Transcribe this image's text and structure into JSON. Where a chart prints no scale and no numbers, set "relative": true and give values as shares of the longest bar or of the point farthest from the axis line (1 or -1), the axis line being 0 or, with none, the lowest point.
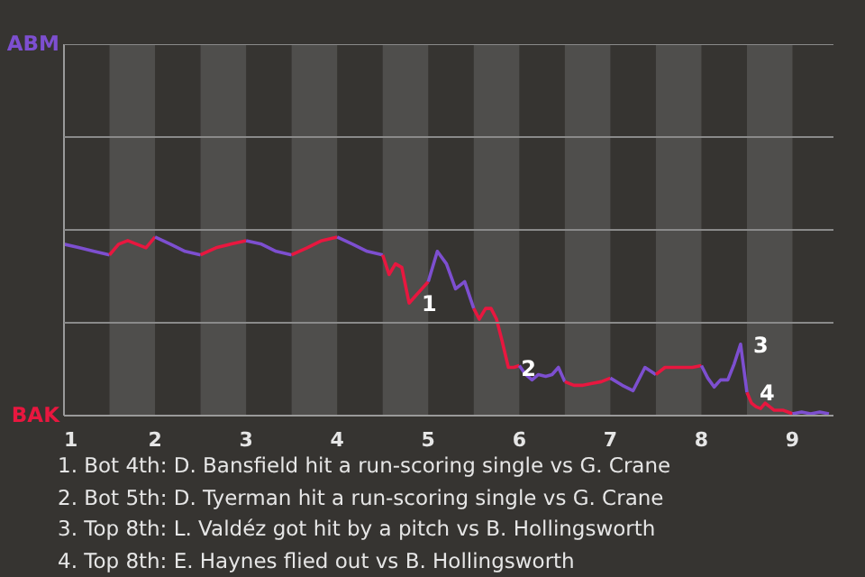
{
  "chart_data": {
    "type": "line",
    "relative": true,
    "ref_lines": [
      {
        "axis": "y",
        "value": 0.52,
        "color": "#8a8a8a"
      },
      {
        "axis": "y",
        "value": 1.04,
        "color": "#8a8a8a"
      },
      {
        "axis": "y",
        "value": 1.56,
        "color": "#8a8a8a"
      },
      {
        "axis": "y",
        "value": 2.08,
        "color": "#8a8a8a"
      }
    ],
    "xlim": [
      1,
      9.45
    ],
    "xticks": [
      1,
      2,
      3,
      4,
      5,
      6,
      7,
      8,
      9
    ],
    "series": [
      {
        "name": "ABM",
        "color": "#7d4fd0",
        "x": [
          1,
          1.17,
          1.33,
          1.5
        ],
        "values": [
          0.96,
          0.94,
          0.92,
          0.9
        ]
      },
      {
        "name": "BAK",
        "color": "#e8173f",
        "x": [
          1.5,
          1.6,
          1.7,
          1.8,
          1.9,
          2
        ],
        "values": [
          0.9,
          0.96,
          0.98,
          0.96,
          0.94,
          1
        ]
      },
      {
        "color": "#7d4fd0",
        "x": [
          2,
          2.17,
          2.33,
          2.5
        ],
        "values": [
          1,
          0.96,
          0.92,
          0.9
        ]
      },
      {
        "color": "#e8173f",
        "x": [
          2.5,
          2.67,
          2.83,
          3
        ],
        "values": [
          0.9,
          0.94,
          0.96,
          0.98
        ]
      },
      {
        "color": "#7d4fd0",
        "x": [
          3,
          3.17,
          3.33,
          3.5
        ],
        "values": [
          0.98,
          0.96,
          0.92,
          0.9
        ]
      },
      {
        "color": "#e8173f",
        "x": [
          3.5,
          3.67,
          3.83,
          4
        ],
        "values": [
          0.9,
          0.94,
          0.98,
          1
        ]
      },
      {
        "color": "#7d4fd0",
        "x": [
          4,
          4.17,
          4.33,
          4.5
        ],
        "values": [
          1,
          0.96,
          0.92,
          0.9
        ]
      },
      {
        "color": "#e8173f",
        "x": [
          4.5,
          4.57,
          4.64,
          4.71,
          4.79,
          4.86,
          4.93,
          5
        ],
        "values": [
          0.9,
          0.79,
          0.85,
          0.83,
          0.63,
          0.67,
          0.71,
          0.75
        ]
      },
      {
        "color": "#7d4fd0",
        "x": [
          5,
          5.1,
          5.2,
          5.3,
          5.4,
          5.5
        ],
        "values": [
          0.75,
          0.92,
          0.85,
          0.71,
          0.75,
          0.6
        ]
      },
      {
        "color": "#e8173f",
        "x": [
          5.5,
          5.56,
          5.63,
          5.69,
          5.75,
          5.81,
          5.88,
          5.94,
          6
        ],
        "values": [
          0.6,
          0.54,
          0.6,
          0.6,
          0.54,
          0.42,
          0.27,
          0.27,
          0.28
        ]
      },
      {
        "color": "#7d4fd0",
        "x": [
          6,
          6.07,
          6.14,
          6.21,
          6.29,
          6.36,
          6.43,
          6.5
        ],
        "values": [
          0.28,
          0.23,
          0.2,
          0.23,
          0.22,
          0.23,
          0.27,
          0.19
        ]
      },
      {
        "color": "#e8173f",
        "x": [
          6.5,
          6.6,
          6.7,
          6.8,
          6.9,
          7
        ],
        "values": [
          0.19,
          0.17,
          0.17,
          0.18,
          0.19,
          0.21
        ]
      },
      {
        "color": "#7d4fd0",
        "x": [
          7,
          7.13,
          7.25,
          7.38,
          7.5
        ],
        "values": [
          0.21,
          0.17,
          0.14,
          0.27,
          0.23
        ]
      },
      {
        "color": "#e8173f",
        "x": [
          7.5,
          7.6,
          7.7,
          7.8,
          7.9,
          8
        ],
        "values": [
          0.23,
          0.27,
          0.27,
          0.27,
          0.27,
          0.28
        ]
      },
      {
        "color": "#7d4fd0",
        "x": [
          8,
          8.07,
          8.14,
          8.21,
          8.29,
          8.36,
          8.43,
          8.5
        ],
        "values": [
          0.28,
          0.21,
          0.16,
          0.2,
          0.2,
          0.29,
          0.4,
          0.13
        ]
      },
      {
        "color": "#e8173f",
        "x": [
          8.5,
          8.55,
          8.6,
          8.65,
          8.7,
          8.75,
          8.8,
          8.85,
          8.9,
          8.95,
          9
        ],
        "values": [
          0.13,
          0.07,
          0.05,
          0.04,
          0.07,
          0.05,
          0.03,
          0.03,
          0.03,
          0.02,
          0.01
        ]
      },
      {
        "color": "#7d4fd0",
        "x": [
          9,
          9.1,
          9.2,
          9.3,
          9.4
        ],
        "values": [
          0.01,
          0.02,
          0.01,
          0.02,
          0.01
        ]
      }
    ],
    "bands": [
      {
        "axis": "x",
        "from": 1.5,
        "to": 2,
        "color": "#4f4e4c"
      },
      {
        "axis": "x",
        "from": 2.5,
        "to": 3,
        "color": "#4f4e4c"
      },
      {
        "axis": "x",
        "from": 3.5,
        "to": 4,
        "color": "#4f4e4c"
      },
      {
        "axis": "x",
        "from": 4.5,
        "to": 5,
        "color": "#4f4e4c"
      },
      {
        "axis": "x",
        "from": 5.5,
        "to": 6,
        "color": "#4f4e4c"
      },
      {
        "axis": "x",
        "from": 6.5,
        "to": 7,
        "color": "#4f4e4c"
      },
      {
        "axis": "x",
        "from": 7.5,
        "to": 8,
        "color": "#4f4e4c"
      },
      {
        "axis": "x",
        "from": 8.5,
        "to": 9,
        "color": "#4f4e4c"
      }
    ],
    "annotations": [
      {
        "text": "1",
        "x": 4.79,
        "y": 0.63
      },
      {
        "text": "2",
        "x": 5.88,
        "y": 0.27
      },
      {
        "text": "3",
        "x": 8.43,
        "y": 0.4
      },
      {
        "text": "4",
        "x": 8.5,
        "y": 0.13
      },
      "1. Bot 4th: D. Bansfield hit a run-scoring single vs G. Crane",
      "2. Bot 5th: D. Tyerman hit a run-scoring single vs G. Crane",
      "3. Top 8th: L. Valdéz got hit by a pitch vs B. Hollingsworth",
      "4. Top 8th: E. Haynes flied out vs B. Hollingsworth"
    ]
  }
}
